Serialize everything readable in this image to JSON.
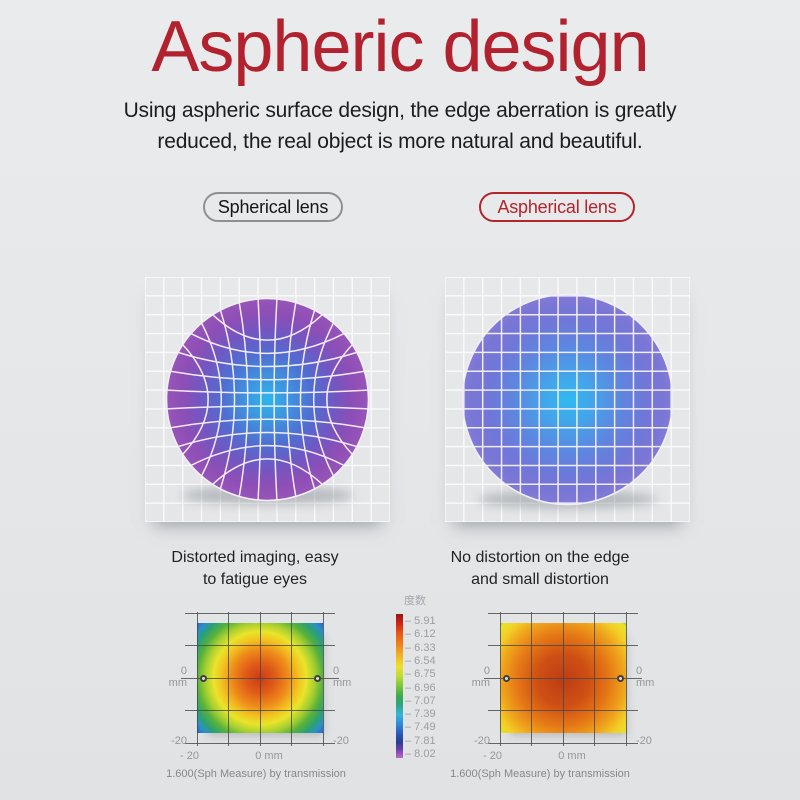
{
  "title": "Aspheric design",
  "subtitle": {
    "line1": "Using aspheric surface design, the edge aberration is greatly",
    "line2": "reduced, the real object is more natural and beautiful."
  },
  "badges": {
    "spherical": "Spherical lens",
    "aspherical": "Aspherical lens"
  },
  "lens_captions": {
    "spherical_line1": "Distorted imaging, easy",
    "spherical_line2": "to fatigue eyes",
    "aspherical_line1": "No distortion on the edge",
    "aspherical_line2": "and small distortion"
  },
  "colors": {
    "title_red": "#b2212e",
    "badge_red": "#b3252d",
    "badge_gray_border": "#8d9194",
    "body_text": "#1b1d1f",
    "axis_line": "#44474a",
    "axis_text": "#94979a",
    "caption_gray": "#85888b",
    "background_top": "#e9ebed",
    "background_bottom": "#e0e2e4",
    "grid_white": "#ffffff"
  },
  "lenses": {
    "cells": 13,
    "spherical": {
      "name": "spherical",
      "radius": 101,
      "distortion": 0.6,
      "gradient": [
        [
          "0%",
          "#2bb7ee"
        ],
        [
          "22%",
          "#3f93e0"
        ],
        [
          "45%",
          "#4f6ed2"
        ],
        [
          "68%",
          "#7356c1"
        ],
        [
          "86%",
          "#8e4eb6"
        ],
        [
          "100%",
          "#9655b8"
        ]
      ]
    },
    "aspherical": {
      "name": "aspherical",
      "radius": 105,
      "distortion": 0,
      "gradient": [
        [
          "0%",
          "#2fb9f1"
        ],
        [
          "25%",
          "#45a3ea"
        ],
        [
          "50%",
          "#5c87e0"
        ],
        [
          "75%",
          "#6f77d8"
        ],
        [
          "92%",
          "#7b76d5"
        ],
        [
          "100%",
          "#807cd7"
        ]
      ]
    }
  },
  "heatmaps": {
    "type": "heatmap",
    "axis_labels": {
      "zero": "0",
      "unit": "mm",
      "neg": "-20",
      "x_first": "- 20",
      "x_center": "0 mm"
    },
    "spherical": {
      "caption": "1.600(Sph Measure) by transmission",
      "shape": "circle 86px at 50% 50%",
      "palette": [
        [
          "0%",
          "#cc3a16"
        ],
        [
          "17%",
          "#df5a17"
        ],
        [
          "33%",
          "#ee8c1a"
        ],
        [
          "45%",
          "#f2c31f"
        ],
        [
          "54%",
          "#e9e42b"
        ],
        [
          "64%",
          "#a6cf30"
        ],
        [
          "73%",
          "#57b13c"
        ],
        [
          "82%",
          "#2ba173"
        ],
        [
          "90%",
          "#2b8ec9"
        ],
        [
          "100%",
          "#2d55c4"
        ]
      ]
    },
    "aspherical": {
      "caption": "1.600(Sph Measure) by transmission",
      "shape": "circle 88px at 50% 52%",
      "palette": [
        [
          "0%",
          "#bc3c14"
        ],
        [
          "30%",
          "#cf5014"
        ],
        [
          "52%",
          "#e57716"
        ],
        [
          "70%",
          "#efa51c"
        ],
        [
          "83%",
          "#f2d026"
        ],
        [
          "93%",
          "#e9e12e"
        ],
        [
          "97%",
          "#9fc232"
        ],
        [
          "100%",
          "#55a233"
        ]
      ]
    }
  },
  "legend": {
    "title": "度数",
    "values": [
      "5.91",
      "6.12",
      "6.33",
      "6.54",
      "6.75",
      "6.96",
      "7.07",
      "7.39",
      "7.49",
      "7.81",
      "8.02"
    ],
    "palette": [
      [
        "0%",
        "#971713"
      ],
      [
        "6%",
        "#cf2013"
      ],
      [
        "13%",
        "#e85413"
      ],
      [
        "21%",
        "#f0811a"
      ],
      [
        "28%",
        "#f2ad1e"
      ],
      [
        "36%",
        "#eedf2a"
      ],
      [
        "43%",
        "#bede30"
      ],
      [
        "50%",
        "#7cc63a"
      ],
      [
        "57%",
        "#3aaa4a"
      ],
      [
        "63%",
        "#2da483"
      ],
      [
        "70%",
        "#36b6dd"
      ],
      [
        "77%",
        "#2f86d8"
      ],
      [
        "84%",
        "#2a53b6"
      ],
      [
        "89%",
        "#2a3e92"
      ],
      [
        "94%",
        "#6a41ae"
      ],
      [
        "100%",
        "#c167c9"
      ]
    ]
  }
}
